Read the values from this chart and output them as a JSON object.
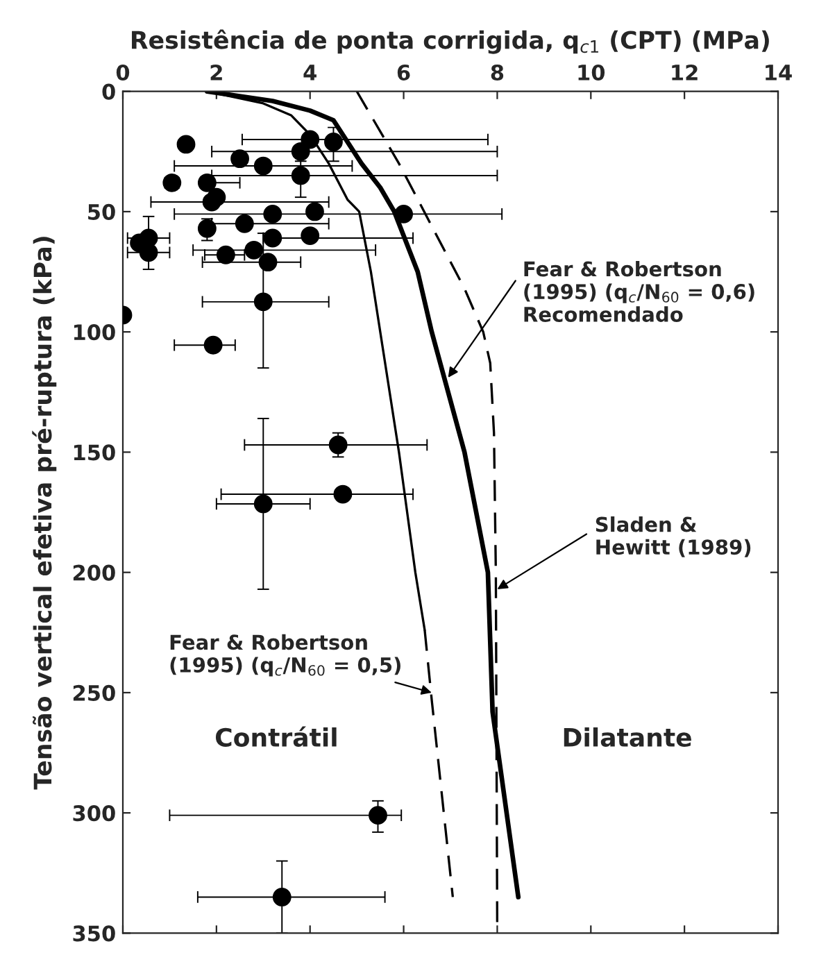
{
  "chart_data": {
    "type": "scatter",
    "xlabel": "Resistência de ponta corrigida, q$_{c1}$ (CPT) (MPa)",
    "ylabel": "Tensão vertical efetiva pré-ruptura (kPa)",
    "xlim": [
      0,
      14
    ],
    "xticks": [
      0,
      2,
      4,
      6,
      8,
      10,
      12,
      14
    ],
    "ylim": [
      350,
      0
    ],
    "yticks": [
      0,
      50,
      100,
      150,
      200,
      250,
      300,
      350
    ],
    "grid": false,
    "legend": false,
    "series": [
      {
        "color": "#000000",
        "marker": "circle",
        "x": [
          1.35,
          4.0,
          4.5,
          3.8,
          2.5,
          3.0,
          3.8,
          1.05,
          1.8,
          2.0,
          1.9,
          3.2,
          4.1,
          6.0,
          1.8,
          2.6,
          3.2,
          4.0,
          0.35,
          0.55,
          0.55,
          2.8,
          2.2,
          3.1,
          3.0,
          0.0,
          1.93,
          4.6,
          4.7,
          3.0,
          5.45,
          3.4
        ],
        "values": [
          22,
          20,
          21,
          25,
          28,
          31,
          35,
          38,
          38,
          44,
          46,
          51,
          50,
          51,
          57,
          55,
          61,
          60,
          63,
          61,
          67,
          66,
          68,
          71,
          87.5,
          93,
          105.5,
          147,
          167.5,
          171.5,
          301,
          335
        ],
        "xerrors": [
          null,
          [
            2.55,
            7.8
          ],
          null,
          [
            1.9,
            8.0
          ],
          null,
          [
            1.1,
            4.9
          ],
          [
            1.9,
            8.0
          ],
          [
            0.9,
            1.2
          ],
          [
            1.8,
            2.5
          ],
          null,
          [
            0.6,
            4.4
          ],
          null,
          null,
          [
            1.1,
            8.1
          ],
          null,
          [
            1.9,
            4.4
          ],
          [
            3.0,
            6.2
          ],
          null,
          null,
          [
            0.1,
            1.0
          ],
          [
            0.1,
            1.0
          ],
          [
            1.5,
            5.4
          ],
          [
            1.75,
            2.6
          ],
          [
            1.7,
            3.8
          ],
          [
            1.7,
            4.4
          ],
          null,
          [
            1.1,
            2.4
          ],
          [
            2.6,
            6.5
          ],
          [
            2.1,
            6.2
          ],
          [
            2.0,
            4.0
          ],
          [
            1.0,
            5.95
          ],
          [
            1.6,
            5.6
          ]
        ],
        "errors": [
          null,
          null,
          [
            15,
            29
          ],
          null,
          null,
          null,
          [
            29,
            44
          ],
          null,
          null,
          null,
          null,
          null,
          null,
          null,
          [
            53,
            62
          ],
          null,
          null,
          null,
          null,
          null,
          [
            52,
            74
          ],
          null,
          null,
          null,
          [
            59,
            115
          ],
          null,
          null,
          [
            142,
            152
          ],
          null,
          [
            136,
            207
          ],
          [
            295,
            308
          ],
          [
            320,
            350
          ]
        ]
      },
      {
        "type": "line",
        "color": "#000000",
        "line_style": "solid",
        "x": [
          1.8,
          3.0,
          3.6,
          4.0,
          4.4,
          4.8,
          5.05,
          5.3,
          5.5,
          5.9,
          6.25,
          6.45
        ],
        "values": [
          0,
          5,
          10,
          18,
          30,
          45,
          50,
          75,
          100,
          150,
          200,
          224
        ]
      },
      {
        "type": "line",
        "color": "#000000",
        "line_style": "dashed",
        "x": [
          6.45,
          6.6,
          7.05
        ],
        "values": [
          224,
          253,
          335
        ]
      },
      {
        "type": "line",
        "color": "#000000",
        "line_style": "solid",
        "x": [
          1.8,
          3.2,
          4.0,
          4.5,
          5.1,
          5.5,
          5.8,
          6.3,
          6.6,
          7.3,
          7.8,
          7.9,
          8.45
        ],
        "values": [
          0,
          4,
          8,
          12,
          30,
          40,
          50,
          75,
          100,
          150,
          200,
          258,
          335
        ]
      },
      {
        "type": "line",
        "color": "#000000",
        "line_style": "dashed",
        "x": [
          5.0,
          5.9,
          6.6,
          7.3,
          7.7,
          7.85,
          7.93,
          7.97,
          8.0
        ],
        "values": [
          0,
          30,
          56,
          82,
          100,
          113,
          142,
          200,
          350
        ]
      }
    ],
    "annotations": [
      {
        "text": "Fear & Robertson\n(1995) (q$_{c}$/N$_{60}$ = 0,6)\nRecomendado",
        "x": 6.95,
        "y": 119
      },
      {
        "text": "Sladen &\nHewitt (1989)",
        "x": 8.0,
        "y": 207
      },
      {
        "text": "Fear & Robertson\n(1995) (q$_{c}$/N$_{60}$ = 0,5)",
        "x": 6.6,
        "y": 250
      },
      "Contrátil",
      "Dilatante"
    ]
  }
}
